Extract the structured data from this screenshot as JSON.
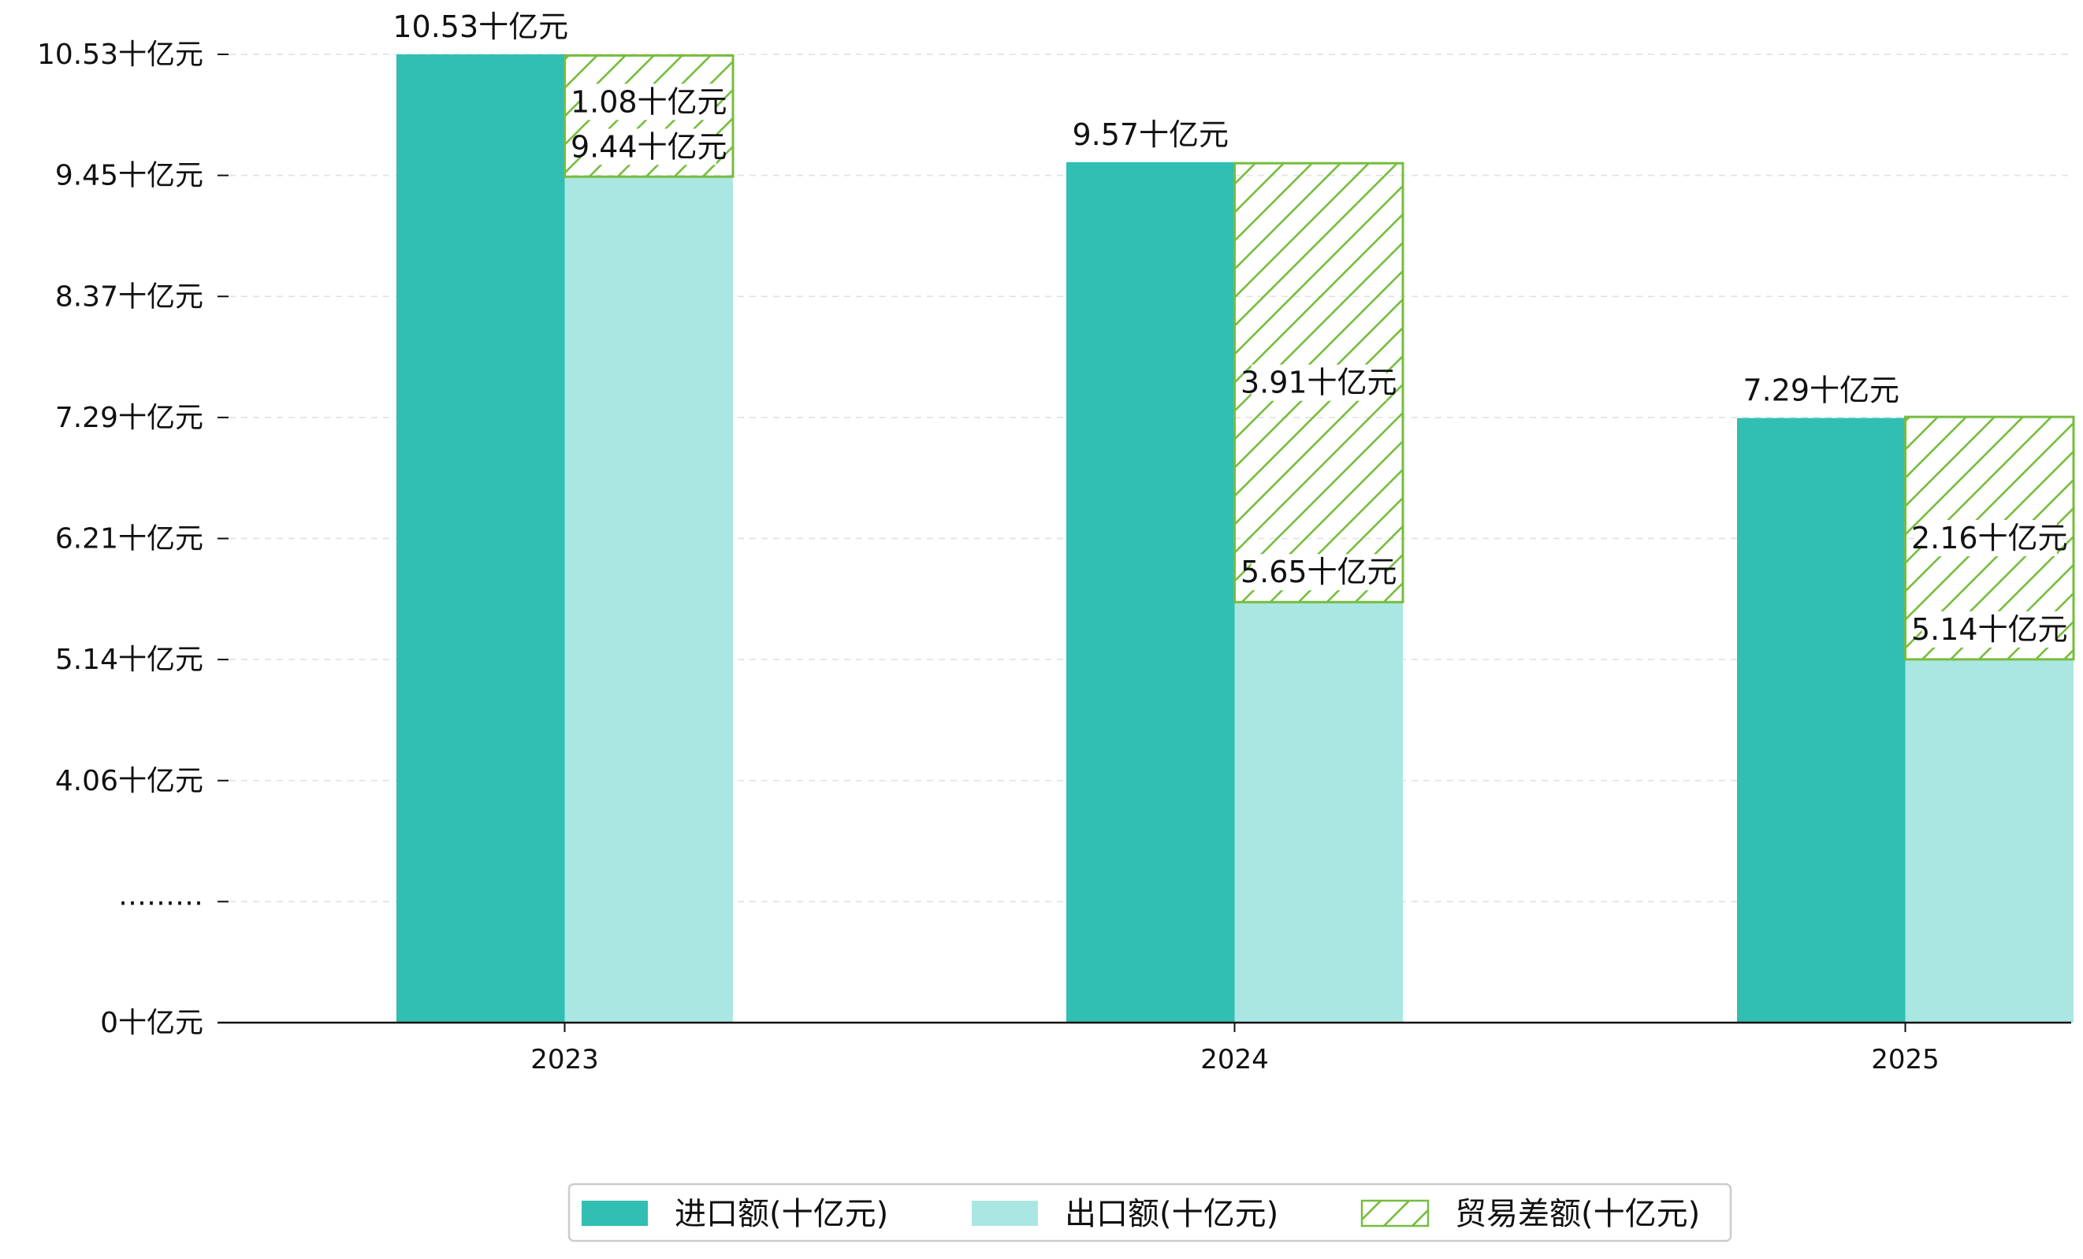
{
  "chart_data": {
    "type": "bar",
    "categories": [
      "2023",
      "2024",
      "2025"
    ],
    "series": [
      {
        "name": "进口额(十亿元)",
        "values": [
          10.53,
          9.57,
          7.29
        ],
        "color": "#30bfb2"
      },
      {
        "name": "出口额(十亿元)",
        "values": [
          9.44,
          5.65,
          5.14
        ],
        "color": "#aae7e2"
      },
      {
        "name": "贸易差额(十亿元)",
        "values": [
          1.08,
          3.91,
          2.16
        ],
        "color": "#76bd3e",
        "pattern": "hatched"
      }
    ],
    "value_labels": {
      "import": [
        "10.53十亿元",
        "9.57十亿元",
        "7.29十亿元"
      ],
      "export": [
        "9.44十亿元",
        "5.65十亿元",
        "5.14十亿元"
      ],
      "balance": [
        "1.08十亿元",
        "3.91十亿元",
        "2.16十亿元"
      ]
    },
    "y_axis": {
      "broken": true,
      "tick_labels": [
        "0十亿元",
        "………",
        "4.06十亿元",
        "5.14十亿元",
        "6.21十亿元",
        "7.29十亿元",
        "8.37十亿元",
        "9.45十亿元",
        "10.53十亿元"
      ]
    },
    "ylim": [
      0,
      10.53
    ],
    "grid": "horizontal dashed",
    "legend_position": "bottom"
  }
}
